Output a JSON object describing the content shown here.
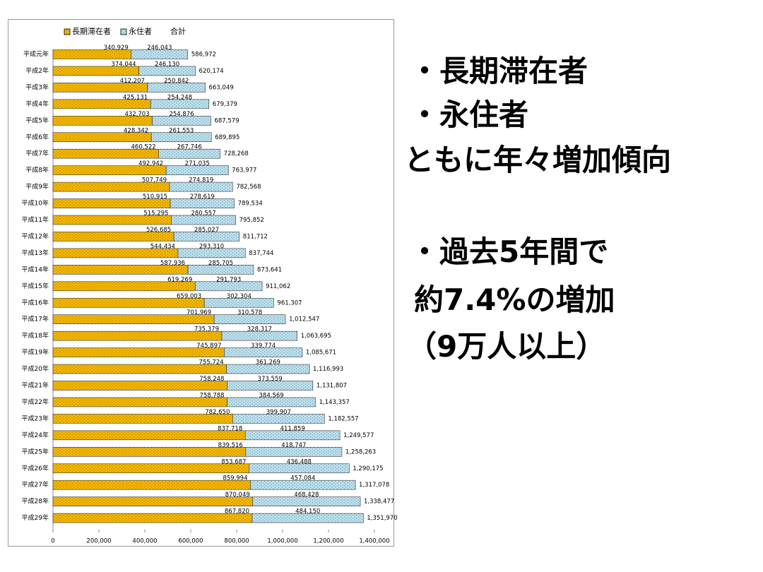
{
  "chart_data": {
    "type": "stacked-barh",
    "legend": "top",
    "categories": [
      "平成元年",
      "平成2年",
      "平成3年",
      "平成4年",
      "平成5年",
      "平成6年",
      "平成7年",
      "平成8年",
      "平成9年",
      "平成10年",
      "平成11年",
      "平成12年",
      "平成13年",
      "平成14年",
      "平成15年",
      "平成16年",
      "平成17年",
      "平成18年",
      "平成19年",
      "平成20年",
      "平成21年",
      "平成22年",
      "平成23年",
      "平成24年",
      "平成25年",
      "平成26年",
      "平成27年",
      "平成28年",
      "平成29年"
    ],
    "series": [
      {
        "name": "長期滞在者",
        "color": "#f5b800",
        "values": [
          340929,
          374044,
          412207,
          425131,
          432703,
          428342,
          460522,
          492942,
          507749,
          510915,
          515295,
          526685,
          544434,
          587936,
          619269,
          659003,
          701969,
          735379,
          745897,
          755724,
          758248,
          758788,
          782650,
          837718,
          839516,
          853687,
          859994,
          870049,
          867820
        ],
        "value_labels": [
          "340,929",
          "374,044",
          "412,207",
          "425,131",
          "432,703",
          "428,342",
          "460,522",
          "492,942",
          "507,749",
          "510,915",
          "515,295",
          "526,685",
          "544,434",
          "587,936",
          "619,269",
          "659,003",
          "701,969",
          "735,379",
          "745,897",
          "755,724",
          "758,248",
          "758,788",
          "782,650",
          "837,718",
          "839,516",
          "853,687",
          "859,994",
          "870,049",
          "867,820"
        ]
      },
      {
        "name": "永住者",
        "color": "#bfe3ef",
        "values": [
          246043,
          246130,
          250842,
          254248,
          254876,
          261553,
          267746,
          271035,
          274819,
          278619,
          280557,
          285027,
          293310,
          285705,
          291793,
          302304,
          310578,
          328317,
          339774,
          361269,
          373559,
          384569,
          399907,
          411859,
          418747,
          436488,
          457084,
          468428,
          484150
        ],
        "value_labels": [
          "246,043",
          "246,130",
          "250,842",
          "254,248",
          "254,876",
          "261,553",
          "267,746",
          "271,035",
          "274,819",
          "278,619",
          "280,557",
          "285,027",
          "293,310",
          "285,705",
          "291,793",
          "302,304",
          "310,578",
          "328,317",
          "339,774",
          "361,269",
          "373,559",
          "384,569",
          "399,907",
          "411,859",
          "418,747",
          "436,488",
          "457,084",
          "468,428",
          "484,150"
        ]
      }
    ],
    "totals": {
      "name": "合計",
      "values": [
        586972,
        620174,
        663049,
        679379,
        687579,
        689895,
        728268,
        763977,
        782568,
        789534,
        795852,
        811712,
        837744,
        873641,
        911062,
        961307,
        1012547,
        1063695,
        1085671,
        1116993,
        1131807,
        1143357,
        1182557,
        1249577,
        1258263,
        1290175,
        1317078,
        1338477,
        1351970
      ],
      "value_labels": [
        "586,972",
        "620,174",
        "663,049",
        "679,379",
        "687,579",
        "689,895",
        "728,268",
        "763,977",
        "782,568",
        "789,534",
        "795,852",
        "811,712",
        "837,744",
        "873,641",
        "911,062",
        "961,307",
        "1,012,547",
        "1,063,695",
        "1,085,671",
        "1,116,993",
        "1,131,807",
        "1,143,357",
        "1,182,557",
        "1,249,577",
        "1,258,263",
        "1,290,175",
        "1,317,078",
        "1,338,477",
        "1,351,970"
      ]
    },
    "xlim": [
      0,
      1400000
    ],
    "xticks": [
      0,
      {
        "value": 200000,
        "label": "200,000"
      },
      {
        "value": 400000,
        "label": "400,000"
      },
      {
        "value": 600000,
        "label": "600,000"
      },
      {
        "value": 800000,
        "label": "800,000"
      },
      {
        "value": 1000000,
        "label": "1,000,000"
      },
      {
        "value": 1200000,
        "label": "1,200,000"
      },
      {
        "value": 1400000,
        "label": "1,400,000"
      }
    ]
  },
  "slide_text": [
    "・長期滞在者",
    "・永住者",
    "ともに年々増加傾向",
    "・過去5年間で",
    "約7.4%の増加",
    "（9万人以上）"
  ]
}
